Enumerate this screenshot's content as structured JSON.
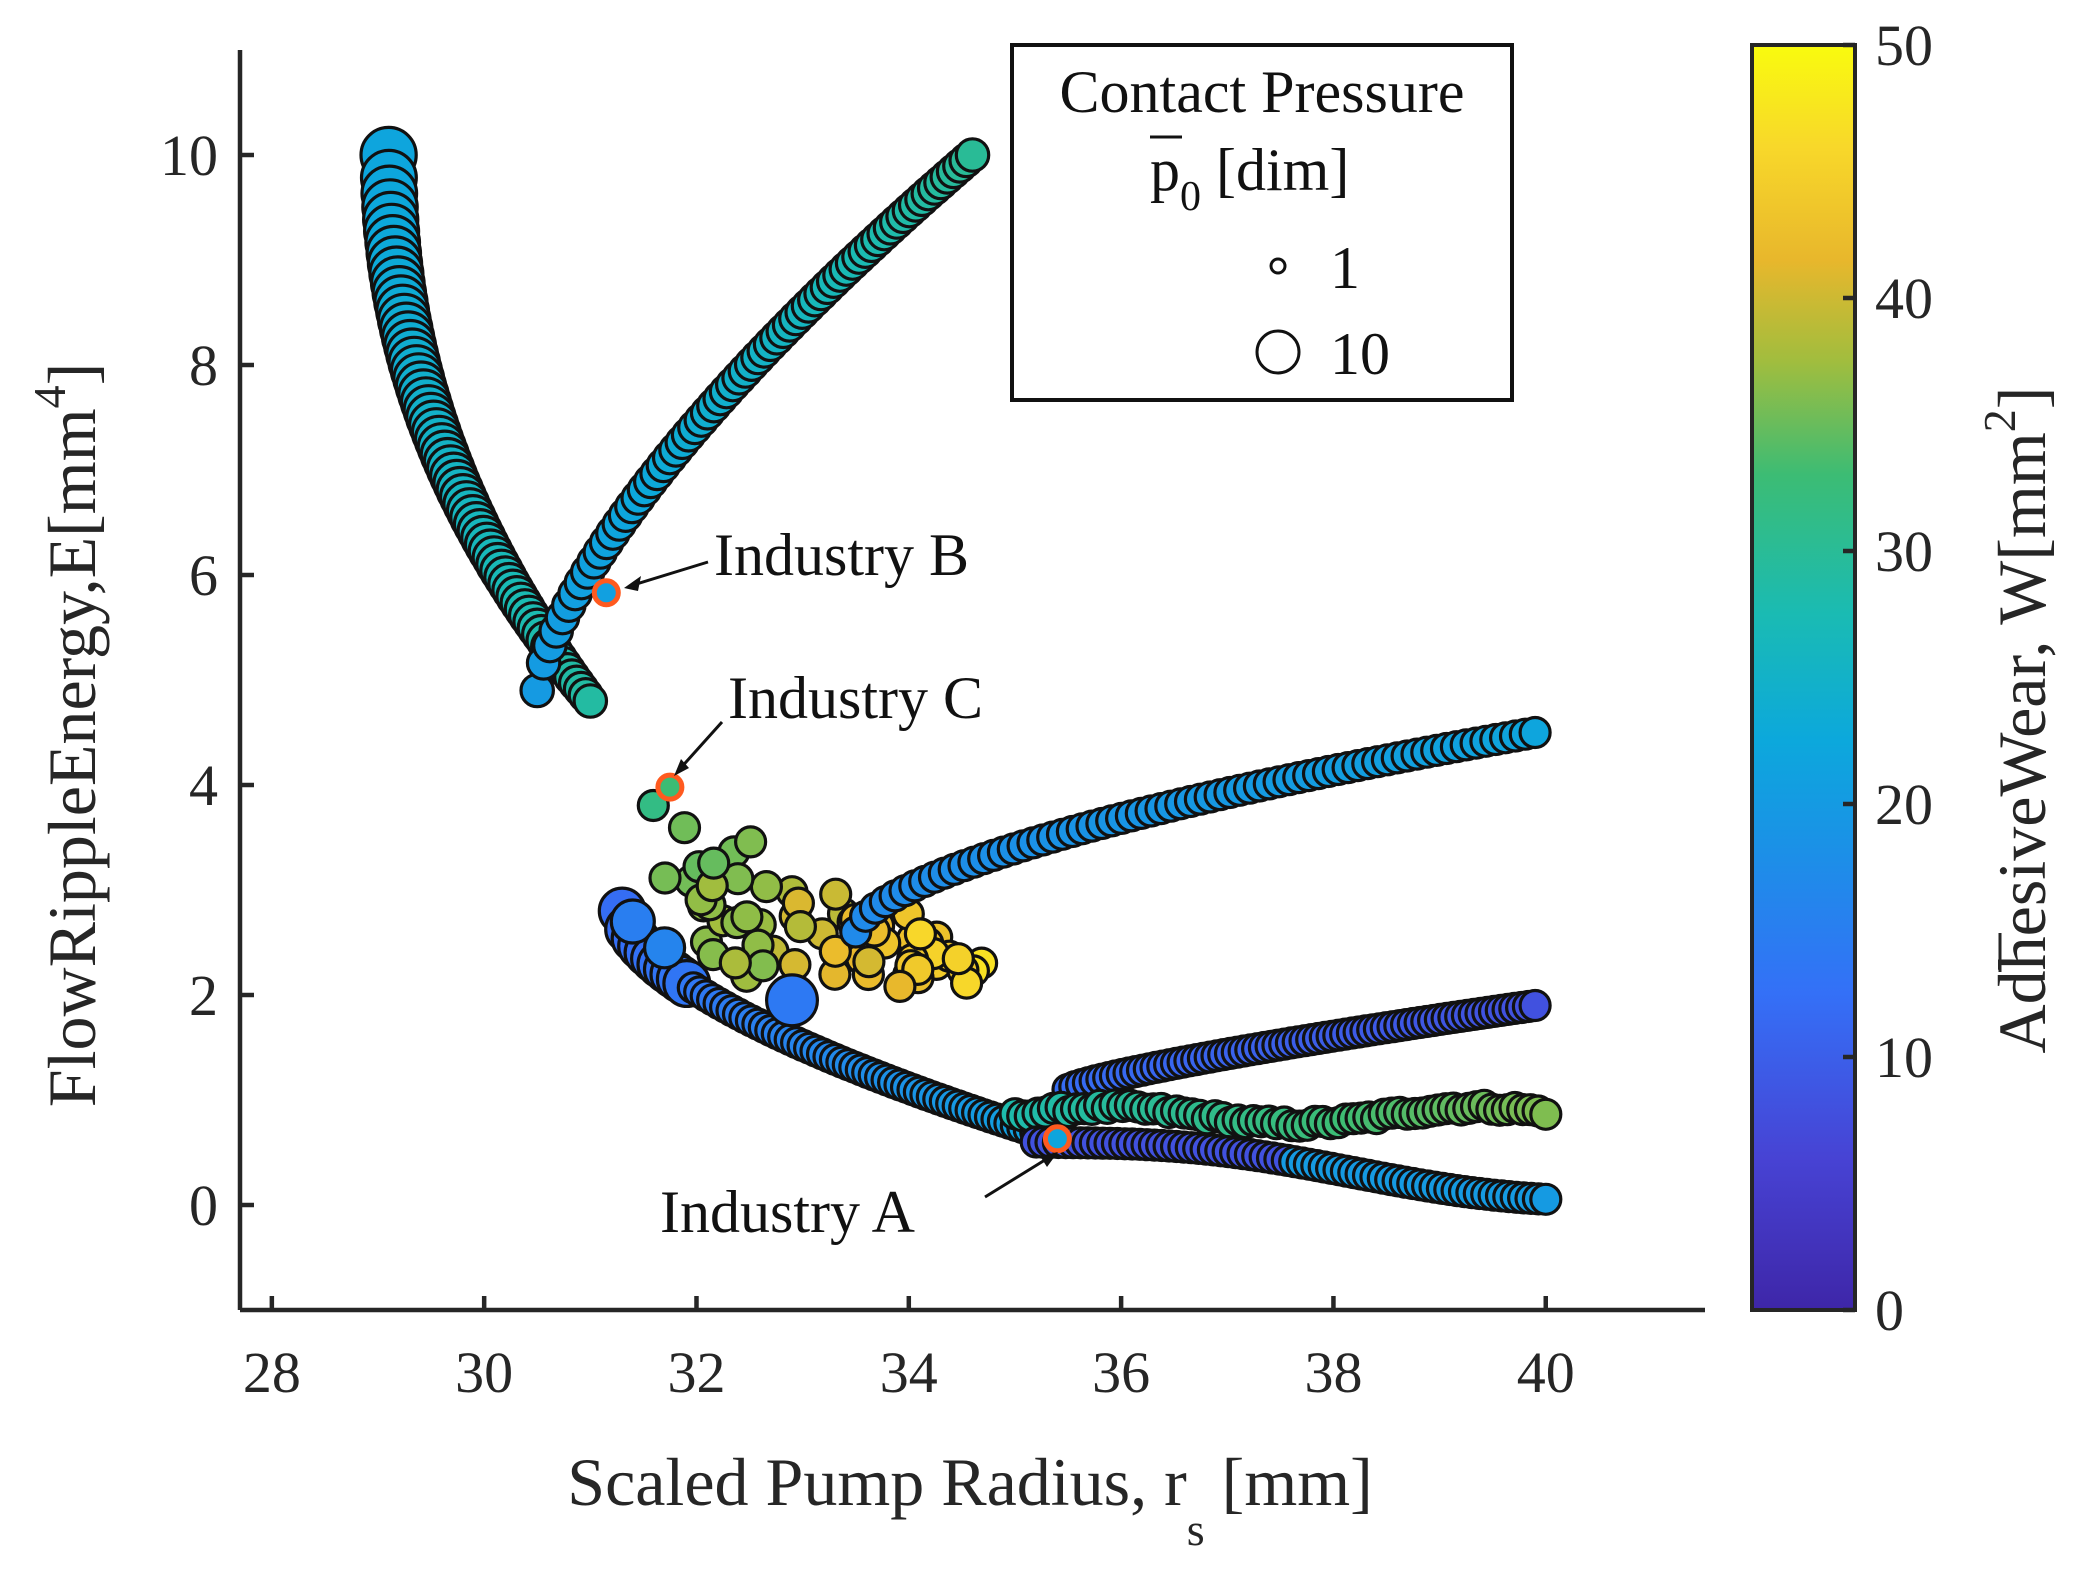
{
  "chart_data": {
    "type": "scatter",
    "title": "",
    "xlabel": "Scaled Pump Radius, r_s [mm]",
    "xlabel_main": "Scaled Pump Radius, r",
    "xlabel_sub": "s",
    "xlabel_unit": " [mm]",
    "ylabel": "FlowRippleEnergy,E[mm^4]",
    "ylabel_main": "FlowRippleEnergy,E[mm",
    "ylabel_sup": "4",
    "ylabel_close": "]",
    "xlim": [
      27.7,
      41.5
    ],
    "ylim": [
      -1,
      11
    ],
    "xticks": [
      28,
      30,
      32,
      34,
      36,
      38,
      40
    ],
    "yticks": [
      0,
      2,
      4,
      6,
      8,
      10
    ],
    "colorbar": {
      "label": "AdhesiveWear, W[mm^2]",
      "label_main": "AdhesiveWear, ",
      "label_symbol": "W",
      "label_unit": "[mm",
      "label_sup": "2",
      "label_close": "]",
      "range": [
        0,
        50
      ],
      "ticks": [
        0,
        10,
        20,
        30,
        40,
        50
      ],
      "colormap": "parula"
    },
    "size_legend": {
      "title": "Contact Pressure",
      "symbol": "p",
      "symbol_sub": "0",
      "unit": " [dim]",
      "entries": [
        {
          "label": "1",
          "size_value": 1
        },
        {
          "label": "10",
          "size_value": 10
        }
      ]
    },
    "series": [
      {
        "name": "Left descending branch",
        "x_range": [
          29.1,
          31.0
        ],
        "y_range": [
          10.0,
          4.8
        ],
        "wear_range": [
          22,
          29
        ],
        "pressure_range": [
          2,
          10
        ]
      },
      {
        "name": "Upper-left rising branch",
        "x_range": [
          30.4,
          34.6
        ],
        "y_range": [
          4.9,
          10.0
        ],
        "wear_range": [
          20,
          30
        ],
        "pressure_range": [
          1,
          3
        ]
      },
      {
        "name": "Central yellow-orange cluster",
        "x_range": [
          31.3,
          34.7
        ],
        "y_range": [
          2.0,
          4.0
        ],
        "wear_range": [
          28,
          48
        ],
        "pressure_range": [
          1,
          2
        ]
      },
      {
        "name": "Mid rising branch",
        "x_range": [
          33.5,
          39.9
        ],
        "y_range": [
          2.6,
          4.5
        ],
        "wear_range": [
          17,
          22
        ],
        "pressure_range": [
          1,
          2
        ]
      },
      {
        "name": "Lower descending branch",
        "x_range": [
          31.3,
          35.5
        ],
        "y_range": [
          2.8,
          0.6
        ],
        "wear_range": [
          12,
          22
        ],
        "pressure_range": [
          1,
          6
        ]
      },
      {
        "name": "Lower-right rising branch",
        "x_range": [
          35.5,
          39.9
        ],
        "y_range": [
          1.1,
          1.9
        ],
        "wear_range": [
          7,
          12
        ],
        "pressure_range": [
          1,
          2
        ]
      },
      {
        "name": "Lower-right green band",
        "x_range": [
          35.0,
          40.0
        ],
        "y_range": [
          0.8,
          0.9
        ],
        "wear_range": [
          28,
          36
        ],
        "pressure_range": [
          1,
          2
        ]
      },
      {
        "name": "Bottom-right branch",
        "x_range": [
          35.2,
          40.0
        ],
        "y_range": [
          0.6,
          0.15
        ],
        "wear_range": [
          7,
          22
        ],
        "pressure_range": [
          1,
          2
        ]
      }
    ],
    "highlighted_points": [
      {
        "label": "Industry A",
        "x": 35.4,
        "y": 0.63,
        "wear": 22,
        "pressure": 1
      },
      {
        "label": "Industry B",
        "x": 31.15,
        "y": 5.83,
        "wear": 21,
        "pressure": 1
      },
      {
        "label": "Industry C",
        "x": 31.75,
        "y": 3.98,
        "wear": 33,
        "pressure": 1
      }
    ]
  }
}
